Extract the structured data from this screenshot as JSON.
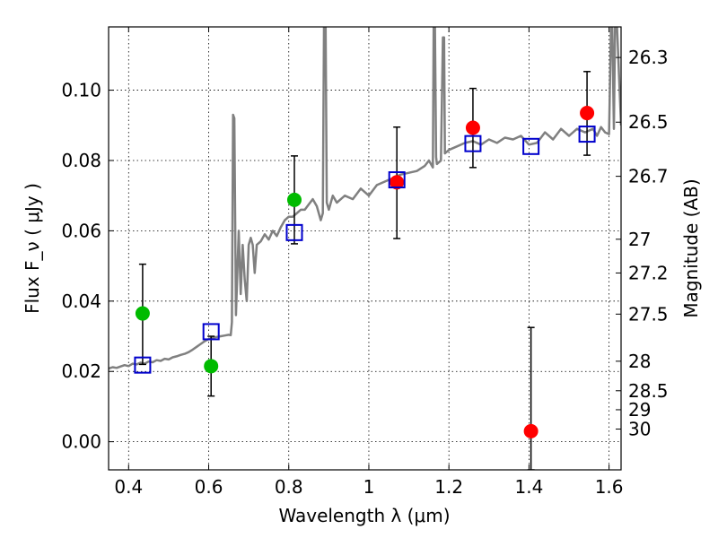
{
  "chart_data": {
    "type": "scatter",
    "xlabel": "Wavelength  λ (μm)",
    "ylabel": "Flux  F_ν  ( μJy )",
    "ylabel_right": "Magnitude (AB)",
    "xlim": [
      0.35,
      1.63
    ],
    "ylim": [
      -0.008,
      0.118
    ],
    "grid": true,
    "x_ticks": [
      0.4,
      0.6,
      0.8,
      1.0,
      1.2,
      1.4,
      1.6
    ],
    "x_tick_labels": [
      "0.4",
      "0.6",
      "0.8",
      "1",
      "1.2",
      "1.4",
      "1.6"
    ],
    "y_ticks": [
      0.0,
      0.02,
      0.04,
      0.06,
      0.08,
      0.1
    ],
    "y_tick_labels": [
      "0.00",
      "0.02",
      "0.04",
      "0.06",
      "0.08",
      "0.10"
    ],
    "right_ticks": [
      {
        "flux": 0.1093,
        "label": "26.3"
      },
      {
        "flux": 0.0909,
        "label": "26.5"
      },
      {
        "flux": 0.0755,
        "label": "26.7"
      },
      {
        "flux": 0.0576,
        "label": "27"
      },
      {
        "flux": 0.048,
        "label": "27.2"
      },
      {
        "flux": 0.0363,
        "label": "27.5"
      },
      {
        "flux": 0.0229,
        "label": "28"
      },
      {
        "flux": 0.0145,
        "label": "28.5"
      },
      {
        "flux": 0.0091,
        "label": "29"
      },
      {
        "flux": 0.0036,
        "label": "30"
      }
    ],
    "series": [
      {
        "marker": "circle",
        "color": "#00bb00",
        "points": [
          {
            "x": 0.435,
            "y": 0.0365
          },
          {
            "x": 0.606,
            "y": 0.0215
          },
          {
            "x": 0.814,
            "y": 0.0688
          }
        ]
      },
      {
        "marker": "circle",
        "color": "#ff0000",
        "points": [
          {
            "x": 1.07,
            "y": 0.0738
          },
          {
            "x": 1.26,
            "y": 0.0893
          },
          {
            "x": 1.405,
            "y": 0.003
          },
          {
            "x": 1.545,
            "y": 0.0935
          }
        ]
      },
      {
        "marker": "open-square",
        "color": "#0000cc",
        "points": [
          {
            "x": 0.435,
            "y": 0.0218
          },
          {
            "x": 0.606,
            "y": 0.0313
          },
          {
            "x": 0.814,
            "y": 0.0595
          },
          {
            "x": 1.07,
            "y": 0.0745
          },
          {
            "x": 1.26,
            "y": 0.0848
          },
          {
            "x": 1.405,
            "y": 0.084
          },
          {
            "x": 1.545,
            "y": 0.0875
          }
        ]
      }
    ],
    "error_bars": [
      {
        "x": 0.435,
        "low": 0.022,
        "high": 0.0505
      },
      {
        "x": 0.606,
        "low": 0.013,
        "high": 0.03
      },
      {
        "x": 0.814,
        "low": 0.0563,
        "high": 0.0813
      },
      {
        "x": 1.07,
        "low": 0.0578,
        "high": 0.0895
      },
      {
        "x": 1.26,
        "low": 0.078,
        "high": 0.1005
      },
      {
        "x": 1.405,
        "low": -0.008,
        "high": 0.0325
      },
      {
        "x": 1.545,
        "low": 0.0815,
        "high": 0.1053
      }
    ],
    "model_spectrum": {
      "color": "#808080",
      "x": [
        0.35,
        0.36,
        0.37,
        0.38,
        0.39,
        0.4,
        0.41,
        0.42,
        0.43,
        0.44,
        0.45,
        0.46,
        0.47,
        0.48,
        0.49,
        0.5,
        0.51,
        0.52,
        0.53,
        0.54,
        0.55,
        0.56,
        0.57,
        0.58,
        0.59,
        0.6,
        0.61,
        0.62,
        0.63,
        0.64,
        0.65,
        0.655,
        0.658,
        0.661,
        0.664,
        0.668,
        0.675,
        0.68,
        0.685,
        0.69,
        0.695,
        0.7,
        0.705,
        0.71,
        0.715,
        0.72,
        0.73,
        0.74,
        0.75,
        0.76,
        0.77,
        0.78,
        0.79,
        0.8,
        0.81,
        0.82,
        0.83,
        0.84,
        0.85,
        0.86,
        0.87,
        0.88,
        0.885,
        0.888,
        0.892,
        0.895,
        0.9,
        0.91,
        0.92,
        0.94,
        0.96,
        0.98,
        1.0,
        1.02,
        1.04,
        1.06,
        1.08,
        1.1,
        1.12,
        1.14,
        1.15,
        1.16,
        1.162,
        1.165,
        1.168,
        1.17,
        1.18,
        1.185,
        1.188,
        1.19,
        1.2,
        1.22,
        1.24,
        1.26,
        1.28,
        1.3,
        1.32,
        1.34,
        1.36,
        1.38,
        1.4,
        1.42,
        1.44,
        1.46,
        1.48,
        1.5,
        1.52,
        1.54,
        1.56,
        1.57,
        1.58,
        1.59,
        1.6,
        1.605,
        1.608,
        1.612,
        1.615,
        1.62,
        1.63
      ],
      "y": [
        0.0208,
        0.0212,
        0.021,
        0.0214,
        0.0218,
        0.0215,
        0.0222,
        0.022,
        0.0225,
        0.0222,
        0.0228,
        0.0226,
        0.0232,
        0.023,
        0.0236,
        0.0234,
        0.024,
        0.0243,
        0.0247,
        0.025,
        0.0255,
        0.0262,
        0.027,
        0.0278,
        0.0286,
        0.0292,
        0.0296,
        0.0298,
        0.03,
        0.0302,
        0.0304,
        0.0303,
        0.034,
        0.093,
        0.092,
        0.036,
        0.06,
        0.042,
        0.056,
        0.046,
        0.04,
        0.056,
        0.058,
        0.056,
        0.048,
        0.056,
        0.057,
        0.059,
        0.0575,
        0.06,
        0.0585,
        0.061,
        0.063,
        0.064,
        0.064,
        0.065,
        0.066,
        0.066,
        0.0675,
        0.069,
        0.067,
        0.063,
        0.065,
        0.118,
        0.118,
        0.068,
        0.066,
        0.07,
        0.068,
        0.07,
        0.069,
        0.072,
        0.07,
        0.073,
        0.074,
        0.075,
        0.076,
        0.0765,
        0.077,
        0.0785,
        0.08,
        0.078,
        0.118,
        0.118,
        0.081,
        0.079,
        0.08,
        0.115,
        0.115,
        0.082,
        0.083,
        0.084,
        0.085,
        0.0855,
        0.0845,
        0.086,
        0.085,
        0.0865,
        0.086,
        0.087,
        0.0845,
        0.085,
        0.088,
        0.086,
        0.089,
        0.087,
        0.089,
        0.088,
        0.089,
        0.087,
        0.0895,
        0.088,
        0.0875,
        0.118,
        0.118,
        0.089,
        0.118,
        0.118,
        0.09
      ]
    }
  }
}
